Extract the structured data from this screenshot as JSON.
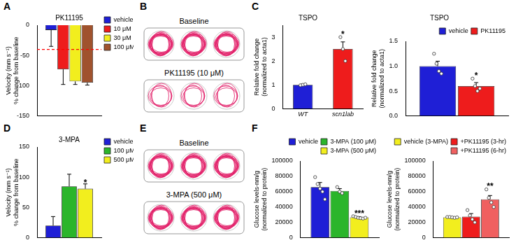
{
  "chart_data": [
    {
      "panel": "A",
      "type": "bar",
      "title": "PK11195",
      "y_label": [
        "Velocity (mm s⁻¹)",
        "% change from baseline"
      ],
      "categories": [
        null
      ],
      "series": [
        {
          "name": "vehicle",
          "color": "#1f1fd6",
          "values": [
            -8
          ],
          "errors": [
            27
          ]
        },
        {
          "name": "10 μM",
          "color": "#ee1c1c",
          "values": [
            -73
          ],
          "errors": [
            25
          ]
        },
        {
          "name": "30 μM",
          "color": "#f2ee1e",
          "values": [
            -93
          ],
          "errors": [
            5
          ]
        },
        {
          "name": "100 μM",
          "color": "#a0522d",
          "values": [
            -95
          ],
          "errors": [
            4
          ]
        }
      ],
      "hline": -40,
      "ylim": [
        -150,
        0
      ],
      "yticks": [
        -150,
        -100,
        -50,
        0
      ],
      "grid": false,
      "legend": "right",
      "tick_labels": "y"
    },
    {
      "panel": "C",
      "type": "bar",
      "title": "TSPO",
      "y_label": [
        "Relative fold change",
        "(normalized to acta1)"
      ],
      "categories": [
        "WT",
        "scn1lab"
      ],
      "series": [
        {
          "colors": [
            "#1f1fd6",
            "#ee1c1c"
          ],
          "values": [
            1.0,
            2.5
          ],
          "errors": [
            0.03,
            0.3
          ],
          "points": [
            [
              0.98,
              1.0,
              1.02
            ],
            [
              3.0,
              2.5,
              2.0
            ]
          ],
          "significance": [
            null,
            "*"
          ]
        }
      ],
      "ylim": [
        0,
        3.5
      ],
      "yticks": [
        0,
        1,
        2,
        3
      ],
      "grid": false
    },
    {
      "type": "bar",
      "title": "TSPO",
      "y_label": [
        "Relative fold change",
        "(normalized to acta1)"
      ],
      "categories": [
        null
      ],
      "series": [
        {
          "name": "vehicle",
          "color": "#1f1fd6",
          "values": [
            1.0
          ],
          "errors": [
            0.1
          ],
          "points": [
            [
              1.25,
              1.05,
              0.9,
              0.85
            ]
          ],
          "significance": [
            null
          ]
        },
        {
          "name": "PK11195",
          "color": "#ee1c1c",
          "values": [
            0.6
          ],
          "errors": [
            0.07
          ],
          "points": [
            [
              0.75,
              0.6,
              0.5,
              0.55
            ]
          ],
          "significance": [
            "*"
          ]
        }
      ],
      "ylim": [
        0,
        1.5
      ],
      "yticks": [
        {
          "value": 0,
          "label": "0.0"
        },
        {
          "value": 0.5,
          "label": "0.5"
        },
        {
          "value": 1,
          "label": "1.0"
        },
        {
          "value": 1.5,
          "label": "1.5"
        }
      ],
      "grid": false,
      "legend": "top",
      "tick_labels": "y"
    },
    {
      "panel": "D",
      "type": "bar",
      "title": "3-MPA",
      "y_label": [
        "Velocity (mm s⁻¹)",
        "% change from baseline"
      ],
      "categories": [
        null
      ],
      "series": [
        {
          "name": "vehicle",
          "color": "#1f1fd6",
          "values": [
            20
          ],
          "errors": [
            15
          ],
          "significance": [
            null
          ]
        },
        {
          "name": "100 μM",
          "color": "#2bb52b",
          "values": [
            85
          ],
          "errors": [
            20
          ],
          "significance": [
            null
          ]
        },
        {
          "name": "500 μM",
          "color": "#f2ee1e",
          "values": [
            81
          ],
          "errors": [
            8
          ],
          "significance": [
            "*"
          ]
        }
      ],
      "ylim": [
        0,
        150
      ],
      "yticks": [
        0,
        50,
        100,
        150
      ],
      "grid": false,
      "legend": "right",
      "tick_labels": "y"
    },
    {
      "panel": "F",
      "type": "bar",
      "y_label": [
        "Glucose levels-nm/g",
        "(normalized to protein)"
      ],
      "categories": [
        null
      ],
      "series": [
        {
          "name": "vehicle",
          "color": "#1f1fd6",
          "values": [
            66000
          ],
          "errors": [
            6000
          ],
          "points": [
            [
              79000,
              70000,
              64000,
              60000,
              50000
            ]
          ],
          "significance": [
            null
          ]
        },
        {
          "name": "3-MPA (100 μM)",
          "color": "#2bb52b",
          "values": [
            61000
          ],
          "errors": [
            3000
          ],
          "points": [
            [
              66000,
              60000,
              58000
            ]
          ],
          "significance": [
            null
          ]
        },
        {
          "name": "3-MPA (500 μM)",
          "color": "#f2ee1e",
          "values": [
            26500
          ],
          "errors": [
            1000
          ],
          "points": [
            [
              28000,
              27000,
              26000,
              25500,
              25000,
              26000
            ]
          ],
          "significance": [
            "***"
          ]
        }
      ],
      "ylim": [
        0,
        100000
      ],
      "yticks": [
        0,
        20000,
        40000,
        60000,
        80000,
        100000
      ],
      "grid": false,
      "legend": "top",
      "tick_labels": "y"
    },
    {
      "type": "bar",
      "y_label": [
        "Glucose levels-nm/g",
        "(normalized to protein)"
      ],
      "categories": [
        null
      ],
      "series": [
        {
          "name": "vehicle (3-MPA)",
          "color": "#f2ee1e",
          "values": [
            26500
          ],
          "errors": [
            600
          ],
          "points": [
            [
              27000,
              27000,
              26500,
              26000,
              26500
            ]
          ],
          "significance": [
            null
          ]
        },
        {
          "name": "+PK11195 (3-hr)",
          "color": "#ee1c1c",
          "values": [
            27500
          ],
          "errors": [
            4000
          ],
          "points": [
            [
              36000,
              29000,
              24000,
              20000
            ]
          ],
          "significance": [
            null
          ]
        },
        {
          "name": "+PK11195 (6-hr)",
          "color": "#f06060",
          "values": [
            50000
          ],
          "errors": [
            5000
          ],
          "points": [
            [
              63000,
              52000,
              46000,
              40000
            ]
          ],
          "significance": [
            "**"
          ]
        }
      ],
      "ylim": [
        0,
        100000
      ],
      "yticks": [
        0,
        20000,
        40000,
        60000,
        80000,
        100000
      ],
      "grid": false,
      "legend": "top",
      "tick_labels": "y"
    }
  ],
  "images": [
    {
      "panel": "B",
      "captions": [
        "Baseline",
        "PK11195 (10 μM)"
      ]
    },
    {
      "panel": "E",
      "captions": [
        "Baseline",
        "3-MPA (500 μM)"
      ]
    }
  ]
}
